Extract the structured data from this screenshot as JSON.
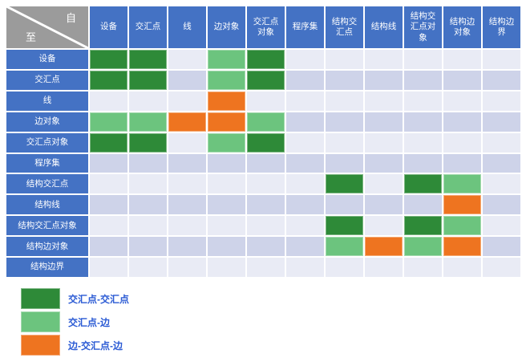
{
  "chart_data": {
    "type": "heatmap",
    "corner": {
      "from_label": "自",
      "to_label": "至"
    },
    "columns": [
      "设备",
      "交汇点",
      "线",
      "边对象",
      "交汇点对象",
      "程序集",
      "结构交汇点",
      "结构线",
      "结构交汇点对象",
      "结构边对象",
      "结构边界"
    ],
    "rows": [
      "设备",
      "交汇点",
      "线",
      "边对象",
      "交汇点对象",
      "程序集",
      "结构交汇点",
      "结构线",
      "结构交汇点对象",
      "结构边对象",
      "结构边界"
    ],
    "matrix": [
      [
        "D",
        "D",
        "",
        "L",
        "D",
        "",
        "",
        "",
        "",
        "",
        ""
      ],
      [
        "D",
        "D",
        "",
        "L",
        "D",
        "",
        "",
        "",
        "",
        "",
        ""
      ],
      [
        "",
        "",
        "",
        "O",
        "",
        "",
        "",
        "",
        "",
        "",
        ""
      ],
      [
        "L",
        "L",
        "O",
        "O",
        "L",
        "",
        "",
        "",
        "",
        "",
        ""
      ],
      [
        "D",
        "D",
        "",
        "L",
        "D",
        "",
        "",
        "",
        "",
        "",
        ""
      ],
      [
        "",
        "",
        "",
        "",
        "",
        "",
        "",
        "",
        "",
        "",
        ""
      ],
      [
        "",
        "",
        "",
        "",
        "",
        "",
        "D",
        "",
        "D",
        "L",
        ""
      ],
      [
        "",
        "",
        "",
        "",
        "",
        "",
        "",
        "",
        "",
        "O",
        ""
      ],
      [
        "",
        "",
        "",
        "",
        "",
        "",
        "D",
        "",
        "D",
        "L",
        ""
      ],
      [
        "",
        "",
        "",
        "",
        "",
        "",
        "L",
        "O",
        "L",
        "O",
        ""
      ],
      [
        "",
        "",
        "",
        "",
        "",
        "",
        "",
        "",
        "",
        "",
        ""
      ]
    ],
    "legend": [
      {
        "code": "D",
        "label": "交汇点-交汇点"
      },
      {
        "code": "L",
        "label": "交汇点-边"
      },
      {
        "code": "O",
        "label": "边-交汇点-边"
      }
    ],
    "colors": {
      "D": "#2e8a38",
      "L": "#6cc47e",
      "O": "#ee7420",
      "header_blue": "#4472c4",
      "corner_gray": "#9b9b9b",
      "row_even": "#e9ebf5",
      "row_odd": "#ced3e9",
      "legend_text": "#2a5ad4"
    }
  }
}
